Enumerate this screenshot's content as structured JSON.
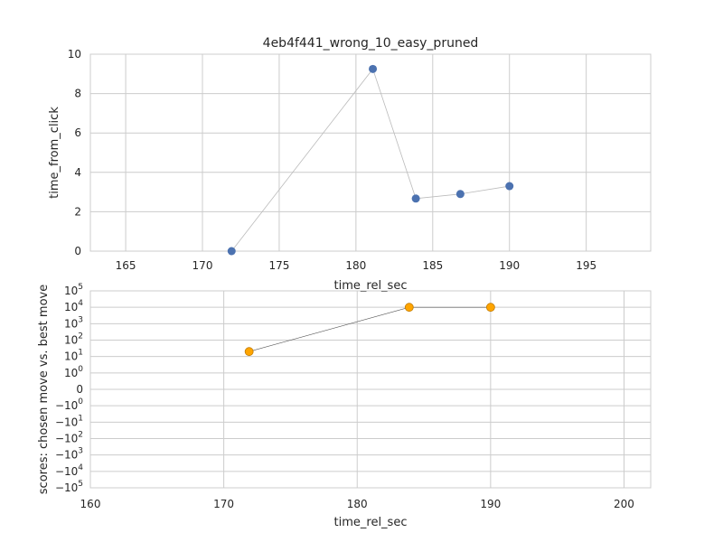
{
  "chart_data": [
    {
      "type": "line",
      "title": "4eb4f441_wrong_10_easy_pruned",
      "xlabel": "time_rel_sec",
      "ylabel": "time_from_click",
      "xlim": [
        162.7,
        199.2
      ],
      "ylim": [
        0,
        10
      ],
      "xticks": [
        165,
        170,
        175,
        180,
        185,
        190,
        195
      ],
      "yticks": [
        0,
        2,
        4,
        6,
        8,
        10
      ],
      "grid": true,
      "series": [
        {
          "x": [
            171.9,
            181.1,
            183.9,
            186.8,
            190.0
          ],
          "y": [
            0.0,
            9.25,
            2.67,
            2.9,
            3.3
          ],
          "marker_color": "#4c72b0",
          "line_color": "#bbbbbb"
        }
      ]
    },
    {
      "type": "line",
      "xlabel": "time_rel_sec",
      "ylabel": "scores: chosen move vs. best move",
      "yscale": "symlog",
      "xlim": [
        160,
        202
      ],
      "ylim": [
        -100000,
        100000
      ],
      "xticks": [
        160,
        170,
        180,
        190,
        200
      ],
      "yticks": [
        {
          "value": 100000,
          "base": "10",
          "exp": "5"
        },
        {
          "value": 10000,
          "base": "10",
          "exp": "4"
        },
        {
          "value": 1000,
          "base": "10",
          "exp": "3"
        },
        {
          "value": 100,
          "base": "10",
          "exp": "2"
        },
        {
          "value": 10,
          "base": "10",
          "exp": "1"
        },
        {
          "value": 1,
          "base": "10",
          "exp": "0"
        },
        {
          "value": 0,
          "base": "0",
          "exp": ""
        },
        {
          "value": -1,
          "base": "−10",
          "exp": "0"
        },
        {
          "value": -10,
          "base": "−10",
          "exp": "1"
        },
        {
          "value": -100,
          "base": "−10",
          "exp": "2"
        },
        {
          "value": -1000,
          "base": "−10",
          "exp": "3"
        },
        {
          "value": -10000,
          "base": "−10",
          "exp": "4"
        },
        {
          "value": -100000,
          "base": "−10",
          "exp": "5"
        }
      ],
      "grid": true,
      "series": [
        {
          "x": [
            171.9,
            183.9,
            190.0
          ],
          "y": [
            20,
            10000,
            10000
          ],
          "marker_color": "#ffa500",
          "marker_edge": "#c07a00",
          "line_color": "#555555"
        }
      ]
    }
  ]
}
